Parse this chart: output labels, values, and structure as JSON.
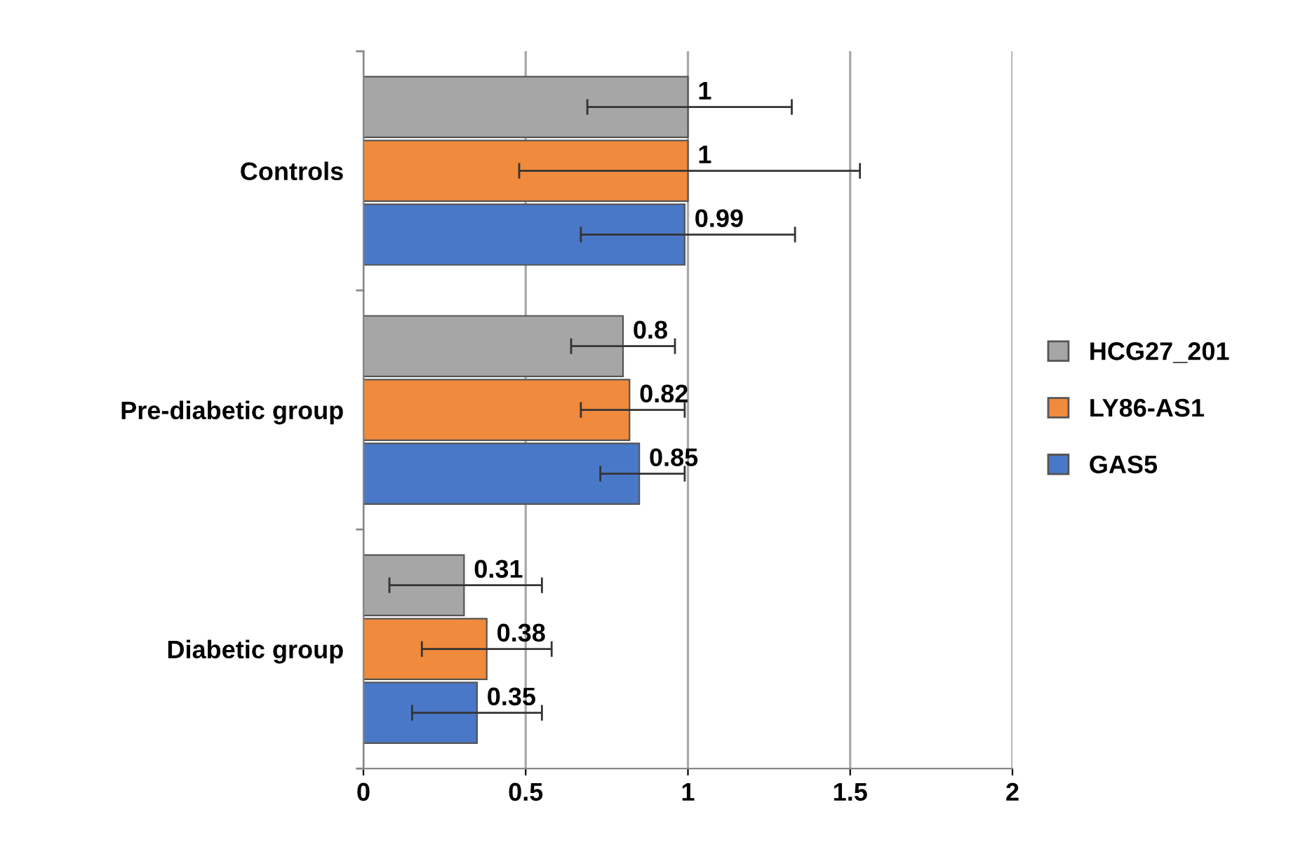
{
  "chart_data": {
    "type": "bar",
    "orientation": "horizontal",
    "categories": [
      "Controls",
      "Pre-diabetic group",
      "Diabetic group"
    ],
    "series": [
      {
        "name": "HCG27_201",
        "color": "#a6a6a6",
        "values": [
          1,
          0.8,
          0.31
        ],
        "errors": [
          [
            0.69,
            1.32
          ],
          [
            0.64,
            0.96
          ],
          [
            0.08,
            0.55
          ]
        ]
      },
      {
        "name": "LY86-AS1",
        "color": "#f08a3c",
        "values": [
          1,
          0.82,
          0.38
        ],
        "errors": [
          [
            0.48,
            1.53
          ],
          [
            0.67,
            0.99
          ],
          [
            0.18,
            0.58
          ]
        ]
      },
      {
        "name": "GAS5",
        "color": "#4a78c8",
        "values": [
          0.99,
          0.85,
          0.35
        ],
        "errors": [
          [
            0.67,
            1.33
          ],
          [
            0.73,
            0.99
          ],
          [
            0.15,
            0.55
          ]
        ]
      }
    ],
    "xlim": [
      0,
      2
    ],
    "xticks": [
      0,
      0.5,
      1,
      1.5,
      2
    ],
    "grid": "x",
    "legend": "right",
    "data_labels": true
  }
}
